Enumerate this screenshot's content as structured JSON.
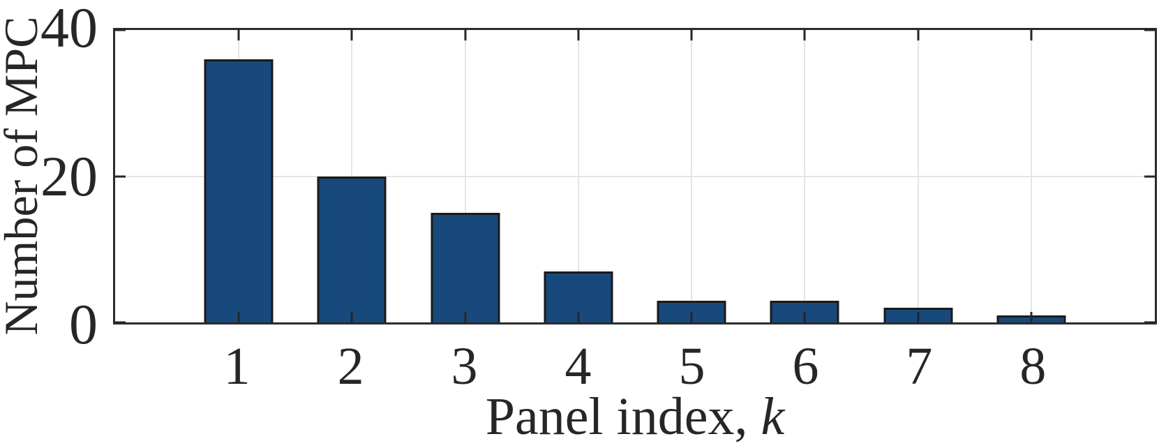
{
  "chart_data": {
    "type": "bar",
    "categories": [
      "1",
      "2",
      "3",
      "4",
      "5",
      "6",
      "7",
      "8"
    ],
    "values": [
      36,
      20,
      15,
      7,
      3,
      3,
      2,
      1
    ],
    "title": "",
    "xlabel": "Panel index, k",
    "xlabel_text": "Panel index, ",
    "xlabel_variable": "k",
    "ylabel": "Number of MPC",
    "yticks": [
      0,
      20,
      40
    ],
    "ylim": [
      0,
      40
    ],
    "xlim": [
      -0.09,
      9.09
    ],
    "bar_width_units": 0.61,
    "grid": true,
    "box": true,
    "tick_dir": "in",
    "legend": null,
    "colors": {
      "bar_fill": "#17497C",
      "bar_edge": "#1A1A1A",
      "grid": "#E5E5E5",
      "axis": "#2B2B2B",
      "tick": "#262626",
      "text": "#262626",
      "background": "#FFFFFF"
    }
  }
}
